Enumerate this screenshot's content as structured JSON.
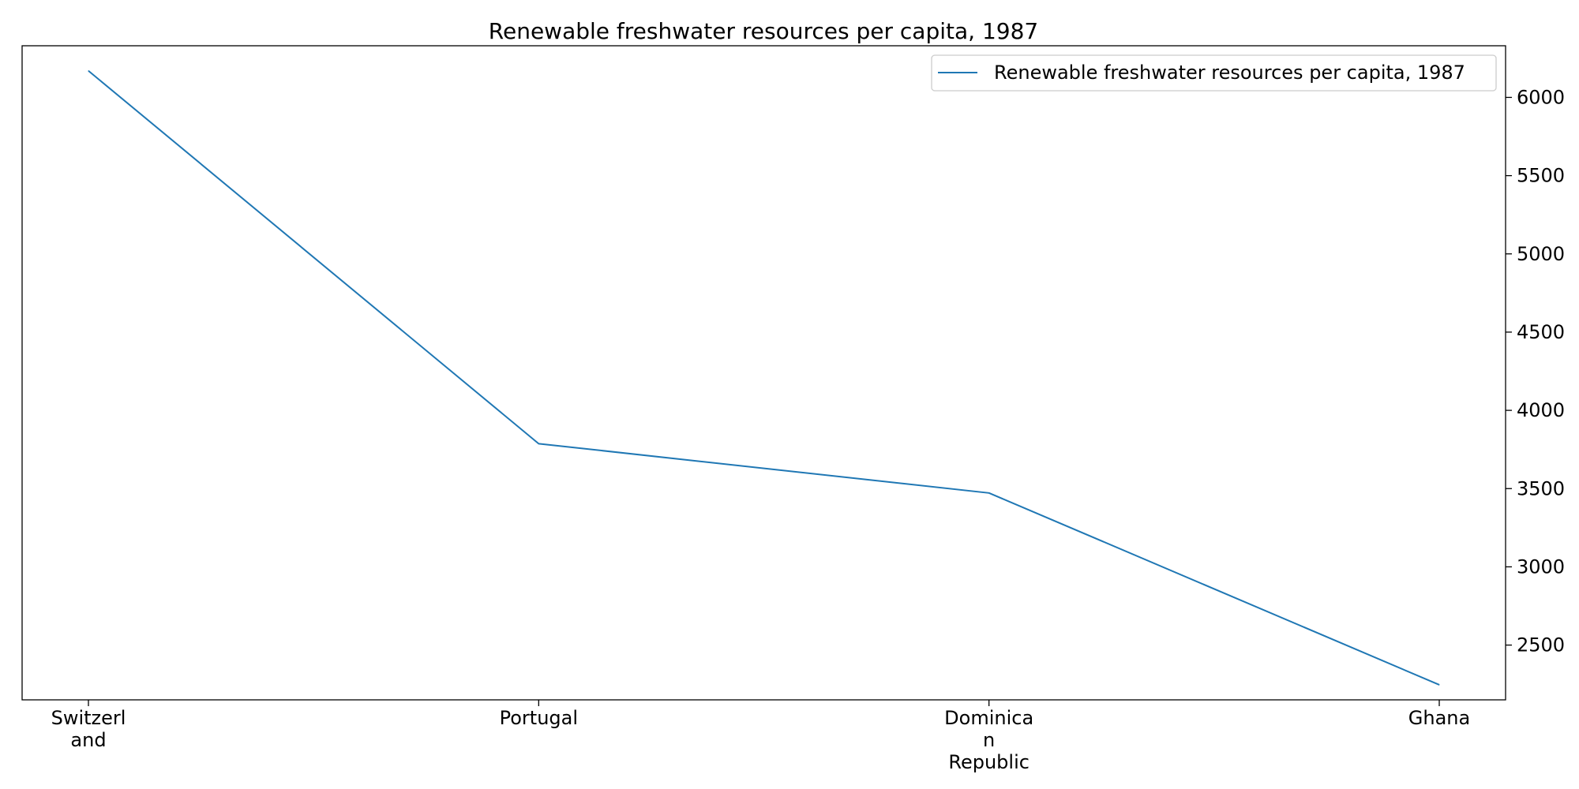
{
  "chart_data": {
    "type": "line",
    "title": "Renewable freshwater resources per capita, 1987",
    "categories": [
      "Switzerland",
      "Portugal",
      "Dominican Republic",
      "Ghana"
    ],
    "category_tick_labels": [
      [
        "Switzerl",
        "and"
      ],
      [
        "Portugal"
      ],
      [
        "Dominica",
        "n",
        "Republic"
      ],
      [
        "Ghana"
      ]
    ],
    "series": [
      {
        "name": "Renewable freshwater resources per capita, 1987",
        "values": [
          6170,
          3787,
          3472,
          2246
        ]
      }
    ],
    "y_ticks": [
      2500,
      3000,
      3500,
      4000,
      4500,
      5000,
      5500,
      6000
    ],
    "ylim": [
      2150,
      6330
    ],
    "y_axis_side": "right",
    "grid": false,
    "legend_position": "top-right",
    "colors": {
      "series": "#1f77b4",
      "axis": "#000000",
      "legend_border": "#cccccc"
    }
  }
}
